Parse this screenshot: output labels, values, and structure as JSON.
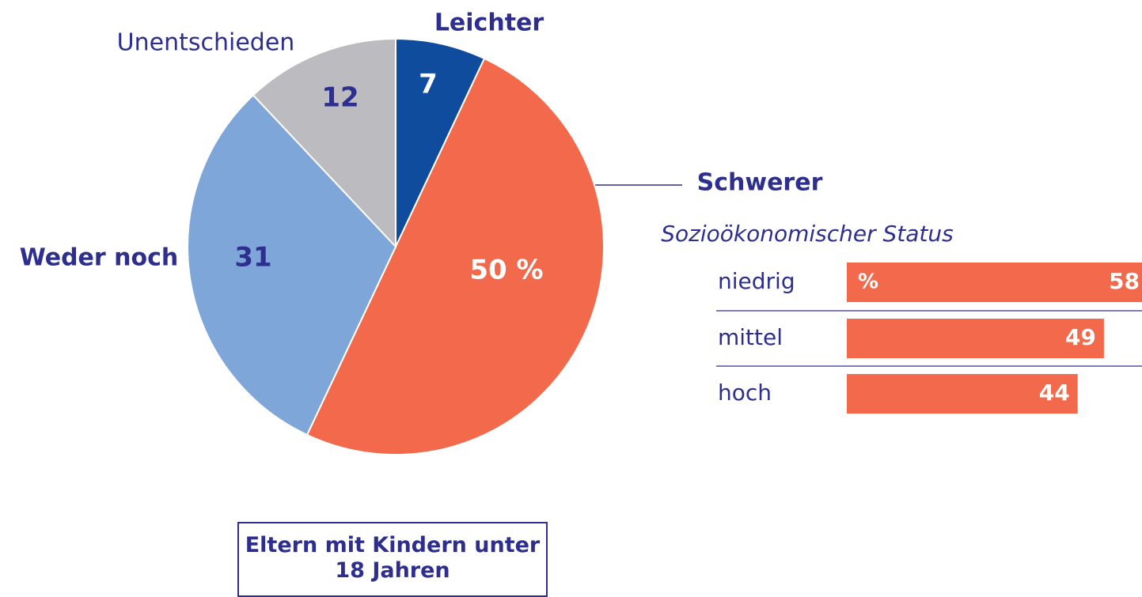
{
  "chart_data": [
    {
      "type": "pie",
      "categories": [
        "Leichter",
        "Schwerer",
        "Weder noch",
        "Unentschieden"
      ],
      "values": [
        7,
        50,
        31,
        12
      ],
      "value_labels": [
        "7",
        "50 %",
        "31",
        "12"
      ],
      "colors": [
        "#0f4c9e",
        "#f2694b",
        "#7ea6d8",
        "#bcbcc0"
      ],
      "caption": "Eltern mit Kindern unter 18 Jahren"
    },
    {
      "type": "hbar",
      "title": "Sozioökonomischer Status",
      "unit": "%",
      "categories": [
        "niedrig",
        "mittel",
        "hoch"
      ],
      "values": [
        58,
        49,
        44
      ],
      "color": "#f2694b"
    }
  ]
}
